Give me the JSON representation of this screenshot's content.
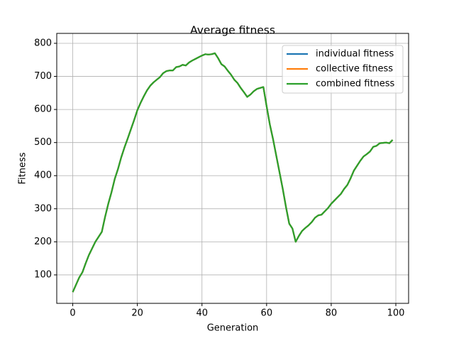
{
  "chart_data": {
    "type": "line",
    "title": "Average fitness",
    "x_label": "Generation",
    "y_label": "Fitness",
    "x": [
      0,
      1,
      2,
      3,
      4,
      5,
      6,
      7,
      8,
      9,
      10,
      11,
      12,
      13,
      14,
      15,
      16,
      17,
      18,
      19,
      20,
      21,
      22,
      23,
      24,
      25,
      26,
      27,
      28,
      29,
      30,
      31,
      32,
      33,
      34,
      35,
      36,
      37,
      38,
      39,
      40,
      41,
      42,
      43,
      44,
      45,
      46,
      47,
      48,
      49,
      50,
      51,
      52,
      53,
      54,
      55,
      56,
      57,
      58,
      59,
      60,
      61,
      62,
      63,
      64,
      65,
      66,
      67,
      68,
      69,
      70,
      71,
      72,
      73,
      74,
      75,
      76,
      77,
      78,
      79,
      80,
      81,
      82,
      83,
      84,
      85,
      86,
      87,
      88,
      89,
      90,
      91,
      92,
      93,
      94,
      95,
      96,
      97,
      98,
      99
    ],
    "series": [
      {
        "name": "individual fitness",
        "color": "#1f77b4",
        "values": [
          48,
          70,
          92,
          108,
          135,
          160,
          180,
          200,
          215,
          230,
          275,
          315,
          350,
          390,
          420,
          455,
          485,
          512,
          540,
          568,
          598,
          620,
          640,
          658,
          672,
          682,
          690,
          698,
          710,
          716,
          718,
          718,
          728,
          730,
          735,
          733,
          742,
          748,
          753,
          758,
          763,
          767,
          766,
          767,
          770,
          755,
          737,
          730,
          717,
          705,
          690,
          680,
          665,
          652,
          638,
          645,
          655,
          662,
          665,
          668,
          610,
          555,
          510,
          460,
          410,
          360,
          305,
          255,
          240,
          200,
          218,
          233,
          242,
          250,
          260,
          273,
          280,
          282,
          292,
          302,
          315,
          325,
          335,
          345,
          360,
          372,
          392,
          415,
          430,
          445,
          458,
          465,
          473,
          487,
          490,
          498,
          499,
          500,
          498,
          508
        ]
      },
      {
        "name": "collective fitness",
        "color": "#ff7f0e",
        "values": [
          48,
          70,
          92,
          108,
          135,
          160,
          180,
          200,
          215,
          230,
          275,
          315,
          350,
          390,
          420,
          455,
          485,
          512,
          540,
          568,
          598,
          620,
          640,
          658,
          672,
          682,
          690,
          698,
          710,
          716,
          718,
          718,
          728,
          730,
          735,
          733,
          742,
          748,
          753,
          758,
          763,
          767,
          766,
          767,
          770,
          755,
          737,
          730,
          717,
          705,
          690,
          680,
          665,
          652,
          638,
          645,
          655,
          662,
          665,
          668,
          610,
          555,
          510,
          460,
          410,
          360,
          305,
          255,
          240,
          200,
          218,
          233,
          242,
          250,
          260,
          273,
          280,
          282,
          292,
          302,
          315,
          325,
          335,
          345,
          360,
          372,
          392,
          415,
          430,
          445,
          458,
          465,
          473,
          487,
          490,
          498,
          499,
          500,
          498,
          508
        ]
      },
      {
        "name": "combined fitness",
        "color": "#2ca02c",
        "values": [
          48,
          70,
          92,
          108,
          135,
          160,
          180,
          200,
          215,
          230,
          275,
          315,
          350,
          390,
          420,
          455,
          485,
          512,
          540,
          568,
          598,
          620,
          640,
          658,
          672,
          682,
          690,
          698,
          710,
          716,
          718,
          718,
          728,
          730,
          735,
          733,
          742,
          748,
          753,
          758,
          763,
          767,
          766,
          767,
          770,
          755,
          737,
          730,
          717,
          705,
          690,
          680,
          665,
          652,
          638,
          645,
          655,
          662,
          665,
          668,
          610,
          555,
          510,
          460,
          410,
          360,
          305,
          255,
          240,
          200,
          218,
          233,
          242,
          250,
          260,
          273,
          280,
          282,
          292,
          302,
          315,
          325,
          335,
          345,
          360,
          372,
          392,
          415,
          430,
          445,
          458,
          465,
          473,
          487,
          490,
          498,
          499,
          500,
          498,
          508
        ]
      }
    ],
    "xlim": [
      -4.95,
      103.95
    ],
    "xticks": [
      0,
      20,
      40,
      60,
      80,
      100
    ],
    "ylim": [
      14,
      830
    ],
    "yticks": [
      100,
      200,
      300,
      400,
      500,
      600,
      700,
      800
    ],
    "grid": true,
    "legend": "upper right"
  }
}
